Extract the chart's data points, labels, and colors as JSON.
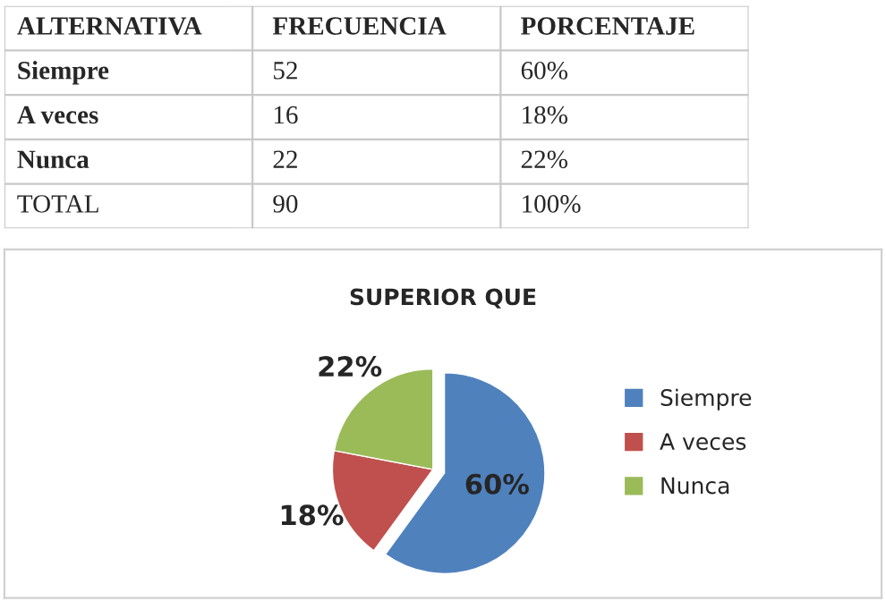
{
  "chart_data": [
    {
      "type": "other",
      "ylabel": "ALTERNATIVA",
      "categories": [
        "FRECUENCIA",
        "PORCENTAJE"
      ],
      "y_categories": [
        "Siempre",
        "A veces",
        "Nunca",
        "TOTAL"
      ],
      "cell_labels": [
        [
          "52",
          "60%"
        ],
        [
          "16",
          "18%"
        ],
        [
          "22",
          "22%"
        ],
        [
          "90",
          "100%"
        ]
      ]
    },
    {
      "type": "pie",
      "title": "SUPERIOR QUE",
      "categories": [
        "Siempre",
        "A veces",
        "Nunca"
      ],
      "values": [
        60,
        18,
        22
      ],
      "colors": [
        "#4f81bd",
        "#c0504d",
        "#9bbb59"
      ],
      "value_labels": [
        "60%",
        "18%",
        "22%"
      ],
      "legend": "right"
    }
  ]
}
